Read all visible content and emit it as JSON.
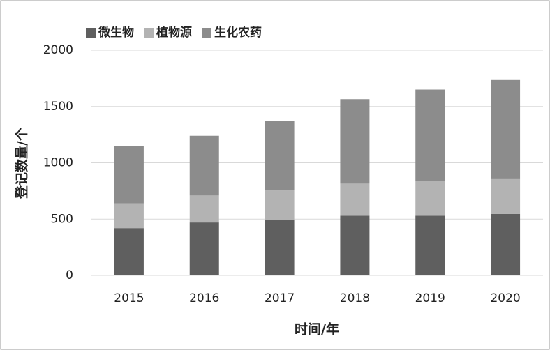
{
  "chart_data": {
    "type": "stacked-bar",
    "x_label": "时间/年",
    "y_label": "登记数量/个",
    "categories": [
      "2015",
      "2016",
      "2017",
      "2018",
      "2019",
      "2020"
    ],
    "series": [
      {
        "name": "微生物",
        "color": "#5f5f5f",
        "values": [
          420,
          470,
          495,
          530,
          530,
          545
        ]
      },
      {
        "name": "植物源",
        "color": "#b3b3b3",
        "values": [
          220,
          240,
          260,
          285,
          310,
          310
        ]
      },
      {
        "name": "生化农药",
        "color": "#8c8c8c",
        "values": [
          510,
          530,
          615,
          750,
          810,
          880
        ]
      }
    ],
    "ylim": [
      0,
      2000
    ],
    "yticks": [
      0,
      500,
      1000,
      1500,
      2000
    ],
    "grid": true
  }
}
